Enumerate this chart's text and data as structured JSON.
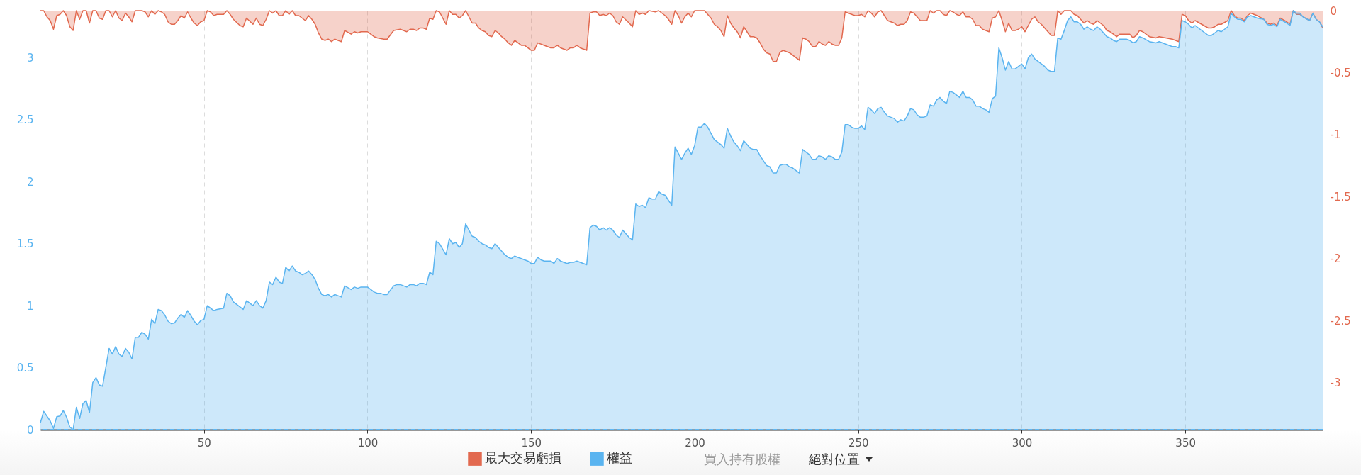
{
  "chart_data": {
    "type": "area",
    "xlim": [
      0,
      392
    ],
    "xticks": [
      50,
      100,
      150,
      200,
      250,
      300,
      350
    ],
    "ylim": [
      0,
      3.38
    ],
    "yticks": [
      0,
      0.5,
      1,
      1.5,
      2,
      2.5,
      3
    ],
    "y2lim": [
      -3.38,
      0
    ],
    "y2ticks": [
      0,
      -0.5,
      -1,
      -1.5,
      -2,
      -2.5,
      -3
    ],
    "grid": "x",
    "legend": "bottom",
    "ref_lines": [
      {
        "axis": "y",
        "value": 0,
        "color": "#5fb8f4",
        "line_style": "dashed"
      }
    ],
    "annotations": [
      "買入持有股權",
      "絕對位置"
    ],
    "series": [
      {
        "name": "最大交易虧損",
        "color": "#e2694f",
        "axis": "y2",
        "x": [
          0,
          1,
          2,
          3,
          4,
          5,
          6,
          7,
          8,
          9,
          10,
          11,
          12,
          13,
          14,
          15,
          16,
          17,
          18,
          19,
          20,
          21,
          22,
          23,
          24,
          25,
          26,
          27,
          28,
          29,
          31,
          32,
          33,
          34,
          35,
          36,
          37,
          38,
          39,
          40,
          41,
          42,
          43,
          44,
          45,
          46,
          47,
          48,
          49,
          50,
          51,
          52,
          53,
          54,
          56,
          57,
          58,
          59,
          61,
          62,
          63,
          65,
          66,
          67,
          68,
          69,
          70,
          71,
          72,
          73,
          74,
          75,
          76,
          77,
          78,
          79,
          80,
          81,
          82,
          83,
          84,
          85,
          86,
          87,
          88,
          89,
          90,
          92,
          93,
          95,
          96,
          97,
          98,
          100,
          102,
          103,
          105,
          106,
          108,
          110,
          112,
          113,
          114,
          115,
          116,
          117,
          118,
          119,
          120,
          121,
          122,
          124,
          125,
          126,
          127,
          128,
          129,
          130,
          132,
          133,
          134,
          135,
          136,
          137,
          138,
          139,
          140,
          141,
          142,
          143,
          144,
          145,
          146,
          147,
          148,
          149,
          150,
          151,
          152,
          154,
          156,
          157,
          158,
          159,
          161,
          162,
          163,
          164,
          165,
          167,
          168,
          169,
          170,
          171,
          172,
          173,
          174,
          175,
          176,
          177,
          178,
          180,
          181,
          182,
          183,
          184,
          185,
          186,
          188,
          189,
          190,
          191,
          192,
          193,
          194,
          195,
          196,
          197,
          198,
          199,
          200,
          201,
          203,
          205,
          206,
          207,
          208,
          209,
          210,
          211,
          212,
          213,
          214,
          215,
          216,
          217,
          218,
          219,
          220,
          221,
          222,
          223,
          224,
          225,
          226,
          227,
          228,
          229,
          230,
          231,
          232,
          233,
          234,
          235,
          236,
          237,
          238,
          239,
          240,
          241,
          242,
          243,
          244,
          245,
          246,
          247,
          248,
          249,
          250,
          251,
          252,
          253,
          254,
          255,
          256,
          257,
          258,
          259,
          260,
          261,
          262,
          263,
          264,
          265,
          266,
          267,
          268,
          269,
          270,
          271,
          272,
          273,
          274,
          275,
          276,
          277,
          278,
          279,
          280,
          281,
          282,
          283,
          284,
          285,
          286,
          287,
          288,
          289,
          290,
          291,
          292,
          293,
          294,
          295,
          296,
          297,
          298,
          299,
          300,
          301,
          303,
          304,
          305,
          306,
          308,
          309,
          310,
          311,
          312,
          313,
          315,
          316,
          317,
          318,
          319,
          320,
          321,
          322,
          323,
          324,
          325,
          326,
          327,
          328,
          329,
          330,
          332,
          333,
          334,
          335,
          336,
          337,
          339,
          341,
          342,
          344,
          346,
          347,
          348,
          349,
          350,
          351,
          352,
          353,
          355,
          357,
          358,
          359,
          360,
          361,
          363,
          364,
          365,
          366,
          367,
          368,
          369,
          370,
          372,
          374,
          375,
          376,
          377,
          378,
          379,
          381,
          382,
          383,
          384,
          385,
          386,
          388,
          389,
          390,
          391,
          392
        ],
        "values": [
          0,
          0,
          -0.05,
          -0.08,
          -0.15,
          -0.04,
          -0.03,
          0,
          -0.04,
          -0.13,
          -0.16,
          0,
          -0.07,
          0,
          0,
          -0.1,
          0,
          0,
          -0.06,
          -0.07,
          0,
          0,
          -0.05,
          0,
          -0.06,
          -0.08,
          -0.02,
          -0.05,
          -0.09,
          0,
          0,
          -0.01,
          -0.05,
          0,
          -0.03,
          0,
          -0.01,
          -0.03,
          -0.09,
          -0.11,
          -0.11,
          -0.08,
          -0.04,
          -0.06,
          -0.01,
          -0.06,
          -0.1,
          -0.12,
          -0.09,
          -0.08,
          0,
          -0.01,
          -0.04,
          -0.03,
          -0.03,
          0,
          -0.03,
          -0.07,
          -0.12,
          -0.13,
          -0.06,
          -0.11,
          -0.06,
          -0.11,
          -0.12,
          -0.07,
          0,
          -0.02,
          0,
          -0.04,
          -0.04,
          0,
          -0.03,
          0,
          -0.04,
          -0.04,
          -0.06,
          -0.08,
          -0.04,
          -0.07,
          -0.11,
          -0.18,
          -0.23,
          -0.24,
          -0.23,
          -0.25,
          -0.23,
          -0.25,
          -0.16,
          -0.19,
          -0.17,
          -0.18,
          -0.17,
          -0.17,
          -0.21,
          -0.22,
          -0.23,
          -0.23,
          -0.16,
          -0.15,
          -0.17,
          -0.15,
          -0.15,
          -0.16,
          -0.14,
          -0.14,
          -0.15,
          -0.06,
          -0.07,
          0,
          -0.01,
          -0.11,
          0,
          -0.03,
          -0.03,
          -0.06,
          -0.04,
          0,
          -0.1,
          -0.1,
          -0.14,
          -0.16,
          -0.17,
          -0.2,
          -0.21,
          -0.16,
          -0.18,
          -0.21,
          -0.23,
          -0.26,
          -0.28,
          -0.24,
          -0.26,
          -0.28,
          -0.28,
          -0.3,
          -0.32,
          -0.32,
          -0.26,
          -0.28,
          -0.3,
          -0.3,
          -0.28,
          -0.3,
          -0.32,
          -0.3,
          -0.3,
          -0.28,
          -0.3,
          -0.32,
          -0.02,
          -0.01,
          -0.01,
          -0.04,
          -0.03,
          -0.04,
          -0.02,
          -0.04,
          -0.09,
          -0.11,
          -0.05,
          -0.1,
          -0.13,
          0,
          -0.03,
          -0.02,
          -0.03,
          0,
          -0.01,
          0,
          -0.02,
          -0.04,
          -0.07,
          -0.11,
          0,
          -0.04,
          -0.1,
          -0.05,
          -0.02,
          -0.05,
          0,
          0,
          0,
          -0.06,
          -0.11,
          -0.13,
          -0.16,
          -0.21,
          -0.04,
          -0.1,
          -0.14,
          -0.17,
          -0.22,
          -0.13,
          -0.17,
          -0.21,
          -0.21,
          -0.22,
          -0.26,
          -0.31,
          -0.34,
          -0.35,
          -0.41,
          -0.41,
          -0.34,
          -0.32,
          -0.33,
          -0.34,
          -0.36,
          -0.38,
          -0.4,
          -0.22,
          -0.23,
          -0.25,
          -0.29,
          -0.29,
          -0.25,
          -0.27,
          -0.28,
          -0.25,
          -0.27,
          -0.28,
          -0.28,
          -0.22,
          -0.01,
          -0.02,
          -0.03,
          -0.04,
          -0.04,
          -0.03,
          -0.05,
          0,
          -0.02,
          -0.05,
          -0.01,
          0,
          -0.04,
          -0.08,
          -0.09,
          -0.1,
          -0.12,
          -0.11,
          -0.11,
          -0.08,
          -0.01,
          -0.02,
          -0.05,
          -0.08,
          -0.08,
          -0.08,
          0,
          -0.02,
          0,
          0,
          -0.03,
          -0.04,
          0,
          -0.01,
          -0.03,
          -0.04,
          -0.01,
          -0.05,
          -0.05,
          -0.07,
          -0.12,
          -0.12,
          -0.15,
          -0.16,
          -0.17,
          -0.06,
          -0.05,
          0,
          -0.08,
          -0.17,
          -0.1,
          -0.16,
          -0.16,
          -0.15,
          -0.13,
          -0.17,
          -0.07,
          -0.05,
          -0.09,
          -0.11,
          -0.17,
          -0.2,
          -0.2,
          0,
          -0.03,
          0,
          0,
          -0.03,
          -0.04,
          -0.07,
          -0.1,
          -0.08,
          -0.1,
          -0.11,
          -0.08,
          -0.1,
          -0.12,
          -0.16,
          -0.17,
          -0.19,
          -0.21,
          -0.19,
          -0.19,
          -0.19,
          -0.22,
          -0.2,
          -0.16,
          -0.17,
          -0.21,
          -0.22,
          -0.21,
          -0.22,
          -0.23,
          -0.24,
          -0.25,
          -0.03,
          -0.04,
          -0.08,
          -0.1,
          -0.08,
          -0.11,
          -0.14,
          -0.14,
          -0.13,
          -0.11,
          -0.11,
          -0.08,
          0,
          -0.04,
          -0.06,
          -0.06,
          -0.08,
          -0.04,
          -0.02,
          -0.04,
          -0.07,
          -0.1,
          -0.11,
          -0.1,
          -0.12,
          -0.06,
          -0.09,
          -0.11,
          0,
          -0.03,
          -0.03,
          -0.05,
          -0.08,
          -0.02,
          -0.07,
          -0.09,
          -0.14
        ]
      },
      {
        "name": "權益",
        "color": "#5ab4f0",
        "x": [
          0,
          1,
          3,
          4,
          5,
          6,
          7,
          8,
          9,
          10,
          11,
          12,
          13,
          14,
          15,
          16,
          17,
          18,
          19,
          21,
          22,
          23,
          24,
          25,
          26,
          27,
          28,
          29,
          30,
          31,
          32,
          33,
          34,
          35,
          36,
          37,
          38,
          39,
          40,
          41,
          42,
          43,
          44,
          45,
          46,
          47,
          48,
          49,
          50,
          51,
          53,
          54,
          56,
          57,
          58,
          59,
          62,
          63,
          65,
          66,
          67,
          68,
          69,
          70,
          71,
          72,
          73,
          74,
          75,
          76,
          77,
          78,
          79,
          80,
          81,
          82,
          83,
          84,
          85,
          86,
          87,
          88,
          89,
          90,
          92,
          93,
          95,
          96,
          97,
          98,
          100,
          102,
          103,
          104,
          105,
          106,
          108,
          109,
          110,
          112,
          113,
          114,
          115,
          116,
          117,
          118,
          119,
          120,
          121,
          122,
          124,
          125,
          126,
          127,
          128,
          129,
          130,
          132,
          133,
          134,
          135,
          136,
          137,
          138,
          139,
          140,
          141,
          142,
          143,
          144,
          145,
          149,
          150,
          151,
          152,
          153,
          154,
          156,
          157,
          158,
          159,
          161,
          162,
          163,
          164,
          165,
          167,
          168,
          169,
          170,
          171,
          172,
          173,
          174,
          175,
          176,
          177,
          178,
          180,
          181,
          182,
          183,
          184,
          185,
          186,
          187,
          188,
          189,
          190,
          191,
          192,
          193,
          194,
          195,
          196,
          197,
          198,
          199,
          200,
          201,
          202,
          203,
          204,
          205,
          206,
          207,
          208,
          209,
          210,
          211,
          212,
          213,
          214,
          215,
          216,
          217,
          218,
          219,
          220,
          221,
          222,
          223,
          224,
          225,
          226,
          227,
          228,
          229,
          230,
          231,
          232,
          233,
          234,
          235,
          236,
          237,
          238,
          239,
          240,
          241,
          242,
          243,
          244,
          245,
          246,
          247,
          248,
          249,
          250,
          251,
          252,
          253,
          254,
          255,
          256,
          257,
          258,
          259,
          260,
          261,
          262,
          263,
          264,
          265,
          266,
          267,
          268,
          269,
          270,
          271,
          272,
          273,
          274,
          275,
          276,
          277,
          278,
          279,
          280,
          281,
          282,
          283,
          284,
          285,
          286,
          287,
          288,
          289,
          290,
          291,
          292,
          293,
          294,
          295,
          296,
          297,
          298,
          299,
          300,
          301,
          302,
          303,
          304,
          306,
          307,
          308,
          309,
          310,
          311,
          312,
          313,
          314,
          315,
          316,
          317,
          318,
          319,
          320,
          321,
          322,
          323,
          324,
          325,
          326,
          327,
          328,
          329,
          330,
          332,
          333,
          334,
          335,
          336,
          337,
          339,
          341,
          342,
          344,
          346,
          347,
          348,
          349,
          350,
          351,
          352,
          353,
          355,
          357,
          358,
          359,
          360,
          361,
          363,
          364,
          365,
          366,
          367,
          368,
          369,
          370,
          372,
          374,
          375,
          376,
          377,
          378,
          379,
          381,
          382,
          383,
          384,
          385,
          386,
          388,
          389,
          390,
          391,
          392
        ],
        "values": [
          0.056,
          0.147,
          0.07,
          0.01,
          0.105,
          0.11,
          0.154,
          0.1,
          0.02,
          0,
          0.18,
          0.09,
          0.21,
          0.235,
          0.137,
          0.38,
          0.42,
          0.36,
          0.35,
          0.655,
          0.61,
          0.67,
          0.61,
          0.59,
          0.655,
          0.625,
          0.57,
          0.745,
          0.745,
          0.785,
          0.77,
          0.73,
          0.89,
          0.855,
          0.97,
          0.96,
          0.925,
          0.875,
          0.855,
          0.86,
          0.9,
          0.93,
          0.905,
          0.96,
          0.92,
          0.875,
          0.845,
          0.88,
          0.89,
          1.0,
          0.96,
          0.97,
          0.98,
          1.1,
          1.08,
          1.03,
          0.97,
          1.04,
          1.0,
          1.04,
          1.0,
          0.98,
          1.04,
          1.19,
          1.17,
          1.23,
          1.19,
          1.18,
          1.31,
          1.28,
          1.32,
          1.28,
          1.27,
          1.25,
          1.26,
          1.28,
          1.25,
          1.21,
          1.14,
          1.09,
          1.08,
          1.09,
          1.07,
          1.09,
          1.07,
          1.16,
          1.13,
          1.15,
          1.14,
          1.15,
          1.15,
          1.11,
          1.1,
          1.1,
          1.09,
          1.09,
          1.16,
          1.17,
          1.17,
          1.15,
          1.17,
          1.17,
          1.16,
          1.18,
          1.18,
          1.17,
          1.27,
          1.25,
          1.52,
          1.5,
          1.41,
          1.54,
          1.5,
          1.51,
          1.47,
          1.5,
          1.66,
          1.56,
          1.55,
          1.52,
          1.5,
          1.49,
          1.47,
          1.46,
          1.5,
          1.47,
          1.44,
          1.41,
          1.39,
          1.38,
          1.4,
          1.36,
          1.34,
          1.34,
          1.39,
          1.37,
          1.36,
          1.36,
          1.34,
          1.38,
          1.36,
          1.34,
          1.35,
          1.35,
          1.36,
          1.35,
          1.33,
          1.63,
          1.65,
          1.64,
          1.61,
          1.63,
          1.61,
          1.63,
          1.61,
          1.57,
          1.55,
          1.61,
          1.55,
          1.53,
          1.82,
          1.8,
          1.81,
          1.79,
          1.87,
          1.86,
          1.86,
          1.92,
          1.9,
          1.89,
          1.85,
          1.81,
          2.28,
          2.23,
          2.18,
          2.23,
          2.27,
          2.22,
          2.29,
          2.44,
          2.44,
          2.47,
          2.44,
          2.39,
          2.34,
          2.32,
          2.3,
          2.27,
          2.43,
          2.37,
          2.32,
          2.29,
          2.25,
          2.33,
          2.3,
          2.27,
          2.26,
          2.26,
          2.21,
          2.17,
          2.13,
          2.12,
          2.07,
          2.07,
          2.13,
          2.14,
          2.14,
          2.12,
          2.11,
          2.09,
          2.07,
          2.26,
          2.24,
          2.22,
          2.18,
          2.18,
          2.21,
          2.2,
          2.18,
          2.21,
          2.2,
          2.18,
          2.18,
          2.24,
          2.46,
          2.46,
          2.44,
          2.43,
          2.43,
          2.45,
          2.42,
          2.6,
          2.58,
          2.55,
          2.59,
          2.6,
          2.56,
          2.53,
          2.52,
          2.51,
          2.48,
          2.5,
          2.49,
          2.53,
          2.59,
          2.58,
          2.54,
          2.52,
          2.52,
          2.53,
          2.62,
          2.61,
          2.66,
          2.68,
          2.65,
          2.63,
          2.73,
          2.72,
          2.7,
          2.68,
          2.73,
          2.68,
          2.68,
          2.66,
          2.61,
          2.61,
          2.59,
          2.58,
          2.56,
          2.67,
          2.69,
          3.08,
          3.0,
          2.9,
          2.97,
          2.91,
          2.91,
          2.93,
          2.95,
          2.91,
          3.0,
          3.03,
          2.99,
          2.95,
          2.93,
          2.9,
          2.89,
          2.89,
          3.16,
          3.15,
          3.22,
          3.3,
          3.33,
          3.29,
          3.29,
          3.27,
          3.23,
          3.25,
          3.23,
          3.22,
          3.25,
          3.23,
          3.2,
          3.17,
          3.16,
          3.14,
          3.13,
          3.15,
          3.15,
          3.14,
          3.12,
          3.13,
          3.17,
          3.16,
          3.13,
          3.12,
          3.13,
          3.11,
          3.09,
          3.09,
          3.08,
          3.3,
          3.29,
          3.27,
          3.24,
          3.26,
          3.22,
          3.18,
          3.18,
          3.2,
          3.22,
          3.21,
          3.25,
          3.36,
          3.33,
          3.31,
          3.31,
          3.29,
          3.33,
          3.34,
          3.32,
          3.31,
          3.27,
          3.26,
          3.27,
          3.25,
          3.31,
          3.28,
          3.26,
          3.38,
          3.36,
          3.36,
          3.33,
          3.3,
          3.36,
          3.31,
          3.29,
          3.25
        ]
      }
    ]
  }
}
